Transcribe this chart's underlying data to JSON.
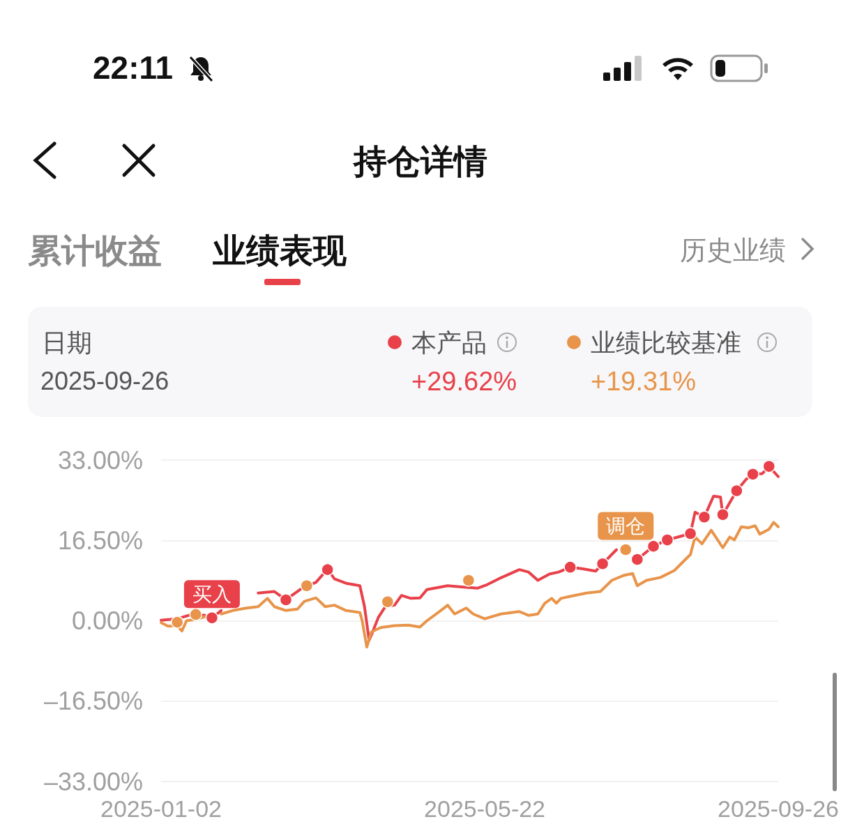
{
  "chart_data": {
    "type": "line",
    "title": "持仓详情",
    "annotations": [
      "22:11",
      "累计收益",
      "业绩表现",
      "历史业绩",
      "日期",
      "2025-09-26",
      "+29.62%",
      "+19.31%",
      {
        "text": "买入",
        "x": "2025-01-24",
        "y": 0.6
      },
      {
        "text": "调仓",
        "x": "2025-07-22",
        "y": 14.6
      }
    ],
    "series": [
      {
        "name": "本产品",
        "color": "#e8414a",
        "x": [
          "2025-01-02",
          "2025-01-06",
          "2025-01-11",
          "2025-01-16",
          "2025-01-21",
          "2025-01-24",
          "2025-01-28",
          "2025-02-02",
          "2025-02-13",
          "2025-02-20",
          "2025-02-25",
          "2025-03-04",
          "2025-03-10",
          "2025-03-15",
          "2025-03-18",
          "2025-03-23",
          "2025-03-29",
          "2025-03-31",
          "2025-04-02",
          "2025-04-03",
          "2025-04-06",
          "2025-04-09",
          "2025-04-13",
          "2025-04-16",
          "2025-04-20",
          "2025-04-24",
          "2025-04-27",
          "2025-05-06",
          "2025-05-13",
          "2025-05-19",
          "2025-05-23",
          "2025-05-28",
          "2025-06-06",
          "2025-06-10",
          "2025-06-14",
          "2025-06-19",
          "2025-06-23",
          "2025-06-28",
          "2025-07-03",
          "2025-07-09",
          "2025-07-12",
          "2025-07-18",
          "2025-07-22",
          "2025-07-27",
          "2025-08-03",
          "2025-08-09",
          "2025-08-19",
          "2025-08-21",
          "2025-08-25",
          "2025-08-29",
          "2025-09-01",
          "2025-09-02",
          "2025-09-08",
          "2025-09-12",
          "2025-09-15",
          "2025-09-19",
          "2025-09-22",
          "2025-09-26"
        ],
        "values": [
          0.1,
          0.3,
          0.7,
          1.4,
          1.1,
          0.6,
          2.1,
          null,
          5.7,
          6.0,
          4.3,
          6.7,
          7.9,
          10.6,
          8.6,
          7.7,
          7.2,
          2.9,
          -4.0,
          -2.9,
          0.7,
          2.9,
          3.2,
          5.2,
          4.6,
          4.7,
          6.4,
          7.2,
          6.9,
          6.7,
          7.4,
          8.6,
          10.5,
          10.0,
          8.3,
          9.6,
          10.0,
          11.0,
          10.7,
          10.2,
          11.7,
          14.6,
          null,
          12.6,
          15.3,
          16.6,
          17.9,
          22.3,
          21.3,
          25.6,
          25.4,
          21.8,
          26.7,
          29.0,
          30.1,
          30.2,
          31.7,
          29.6
        ]
      },
      {
        "name": "业绩比较基准",
        "color": "#e8944a",
        "x": [
          "2025-01-02",
          "2025-01-05",
          "2025-01-09",
          "2025-01-11",
          "2025-01-13",
          "2025-01-18",
          "2025-01-22",
          "2025-01-25",
          "2025-01-28",
          "2025-02-02",
          "2025-02-08",
          "2025-02-13",
          "2025-02-17",
          "2025-02-20",
          "2025-02-25",
          "2025-03-02",
          "2025-03-05",
          "2025-03-10",
          "2025-03-14",
          "2025-03-18",
          "2025-03-23",
          "2025-03-29",
          "2025-03-30",
          "2025-04-01",
          "2025-04-03",
          "2025-04-07",
          "2025-04-13",
          "2025-04-19",
          "2025-04-24",
          "2025-04-27",
          "2025-05-03",
          "2025-05-06",
          "2025-05-09",
          "2025-05-14",
          "2025-05-17",
          "2025-05-22",
          "2025-05-29",
          "2025-06-06",
          "2025-06-10",
          "2025-06-14",
          "2025-06-17",
          "2025-06-20",
          "2025-06-22",
          "2025-06-24",
          "2025-06-28",
          "2025-07-05",
          "2025-07-11",
          "2025-07-16",
          "2025-07-21",
          "2025-07-25",
          "2025-07-27",
          "2025-07-31",
          "2025-08-06",
          "2025-08-12",
          "2025-08-16",
          "2025-08-19",
          "2025-08-21",
          "2025-08-24",
          "2025-08-28",
          "2025-09-02",
          "2025-09-05",
          "2025-09-07",
          "2025-09-10",
          "2025-09-13",
          "2025-09-16",
          "2025-09-18",
          "2025-09-22",
          "2025-09-24",
          "2025-09-26"
        ],
        "values": [
          -0.4,
          -1.1,
          -1.0,
          -2.1,
          0,
          0.4,
          1.0,
          null,
          1.4,
          2.1,
          2.6,
          2.9,
          4.6,
          2.9,
          2.1,
          2.4,
          4.0,
          4.7,
          2.9,
          3.2,
          2.1,
          1.7,
          0,
          -5.4,
          -2.3,
          -1.4,
          -1.0,
          -0.9,
          -1.3,
          0,
          2.1,
          3.2,
          1.4,
          2.6,
          1.4,
          0.4,
          1.4,
          1.9,
          1.1,
          1.4,
          3.6,
          4.6,
          3.6,
          4.6,
          5.0,
          5.7,
          6.0,
          8.3,
          9.3,
          9.7,
          7.2,
          8.3,
          8.9,
          10.3,
          12.2,
          13.6,
          17.2,
          15.8,
          18.6,
          15.0,
          17.2,
          16.6,
          19.3,
          19.1,
          19.5,
          17.8,
          18.8,
          20.2,
          19.3
        ]
      },
      {
        "type": "scatter",
        "marker": "circle",
        "color": "#e8414a",
        "x": [
          "2025-01-24",
          "2025-02-25",
          "2025-03-15",
          "2025-06-28",
          "2025-07-12",
          "2025-07-27",
          "2025-08-03",
          "2025-08-09",
          "2025-08-19",
          "2025-08-25",
          "2025-09-02",
          "2025-09-08",
          "2025-09-15",
          "2025-09-22"
        ],
        "values": [
          0.6,
          4.3,
          10.5,
          11.0,
          11.7,
          12.6,
          15.3,
          16.6,
          17.9,
          21.3,
          21.8,
          26.7,
          30.1,
          31.7
        ]
      },
      {
        "type": "scatter",
        "marker": "circle",
        "color": "#e8944a",
        "x": [
          "2025-01-09",
          "2025-01-17",
          "2025-03-06",
          "2025-04-10",
          "2025-05-15",
          "2025-07-22"
        ],
        "values": [
          -0.3,
          1.3,
          7.2,
          3.9,
          8.3,
          14.6
        ]
      }
    ],
    "xlim": [
      "2025-01-02",
      "2025-09-26"
    ],
    "xticks": [
      "2025-01-02",
      "2025-05-22",
      "2025-09-26"
    ],
    "ylim": [
      -33,
      33
    ],
    "yticks": [
      {
        "value": -33,
        "label": "–33.00%"
      },
      {
        "value": -16.5,
        "label": "–16.50%"
      },
      {
        "value": 0,
        "label": "0.00%"
      },
      {
        "value": 16.5,
        "label": "16.50%"
      },
      {
        "value": 33,
        "label": "33.00%"
      }
    ],
    "grid": "y",
    "legend": "top",
    "marker": "none",
    "line_style": "solid"
  }
}
